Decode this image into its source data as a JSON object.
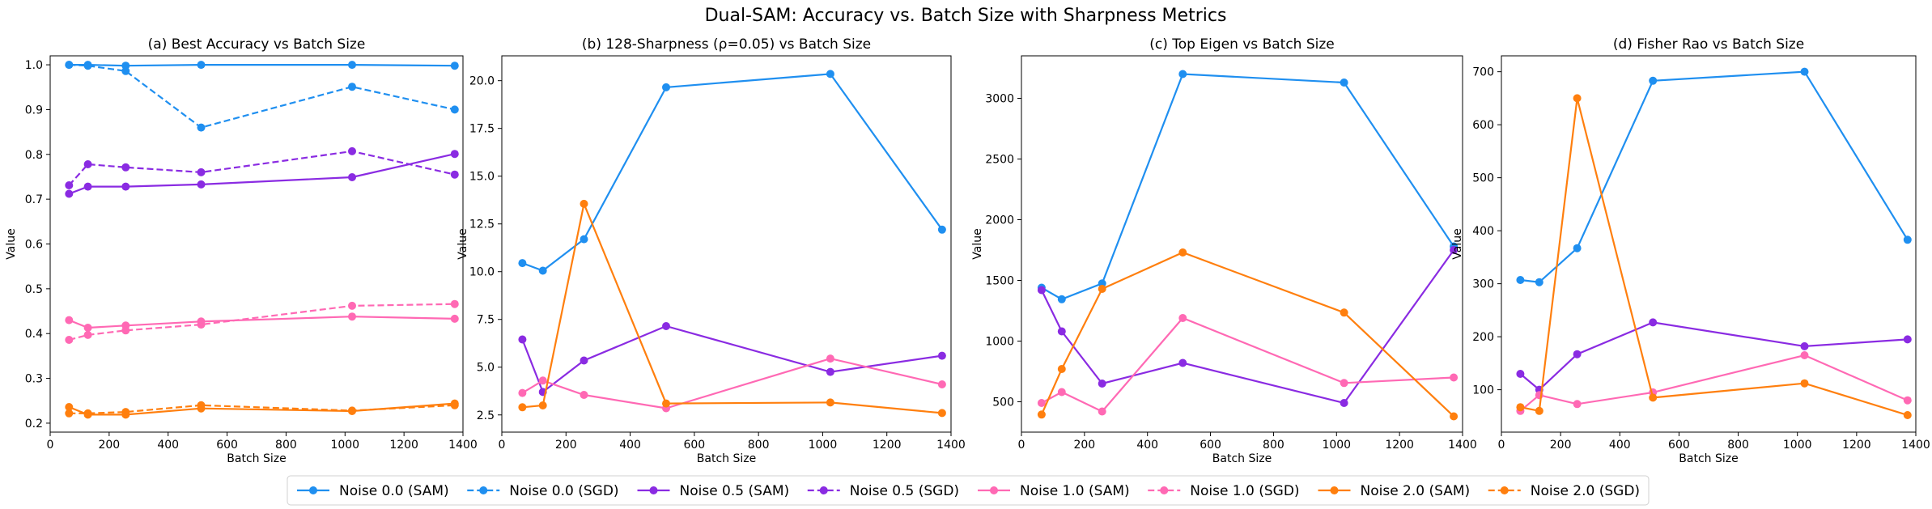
{
  "figure": {
    "suptitle": "Dual-SAM: Accuracy vs. Batch Size with Sharpness Metrics"
  },
  "legend": {
    "placement": "bottom-center",
    "entries": [
      {
        "label": "Noise 0.0 (SAM)",
        "color": "#1f8ff0",
        "dash": "solid"
      },
      {
        "label": "Noise 0.0 (SGD)",
        "color": "#1f8ff0",
        "dash": "dashed"
      },
      {
        "label": "Noise 0.5 (SAM)",
        "color": "#8a2be2",
        "dash": "solid"
      },
      {
        "label": "Noise 0.5 (SGD)",
        "color": "#8a2be2",
        "dash": "dashed"
      },
      {
        "label": "Noise 1.0 (SAM)",
        "color": "#ff69b4",
        "dash": "solid"
      },
      {
        "label": "Noise 1.0 (SGD)",
        "color": "#ff69b4",
        "dash": "dashed"
      },
      {
        "label": "Noise 2.0 (SAM)",
        "color": "#ff7f0e",
        "dash": "solid"
      },
      {
        "label": "Noise 2.0 (SGD)",
        "color": "#ff7f0e",
        "dash": "dashed"
      }
    ]
  },
  "chart_data": [
    {
      "type": "line",
      "title": "(a) Best Accuracy vs Batch Size",
      "xlabel": "Batch Size",
      "ylabel": "Value",
      "xlim": [
        0,
        1400
      ],
      "ylim": [
        0.18,
        1.02
      ],
      "xticks": [
        0,
        200,
        400,
        600,
        800,
        1000,
        1200,
        1400
      ],
      "yticks": [
        0.2,
        0.3,
        0.4,
        0.5,
        0.6,
        0.7,
        0.8,
        0.9,
        1.0
      ],
      "ytick_labels": [
        "0.2",
        "0.3",
        "0.4",
        "0.5",
        "0.6",
        "0.7",
        "0.8",
        "0.9",
        "1.0"
      ],
      "grid": false,
      "series": [
        {
          "name": "Noise 0.0 (SAM)",
          "color": "#1f8ff0",
          "dash": "solid",
          "x": [
            64,
            128,
            256,
            512,
            1024,
            1372
          ],
          "y": [
            1.0,
            1.0,
            0.998,
            1.0,
            1.0,
            0.998
          ]
        },
        {
          "name": "Noise 0.0 (SGD)",
          "color": "#1f8ff0",
          "dash": "dashed",
          "x": [
            64,
            128,
            256,
            512,
            1024,
            1372
          ],
          "y": [
            1.0,
            0.998,
            0.986,
            0.86,
            0.951,
            0.9
          ]
        },
        {
          "name": "Noise 0.5 (SAM)",
          "color": "#8a2be2",
          "dash": "solid",
          "x": [
            64,
            128,
            256,
            512,
            1024,
            1372
          ],
          "y": [
            0.712,
            0.728,
            0.728,
            0.733,
            0.749,
            0.801
          ]
        },
        {
          "name": "Noise 0.5 (SGD)",
          "color": "#8a2be2",
          "dash": "dashed",
          "x": [
            64,
            128,
            256,
            512,
            1024,
            1372
          ],
          "y": [
            0.731,
            0.778,
            0.771,
            0.76,
            0.807,
            0.755
          ]
        },
        {
          "name": "Noise 1.0 (SAM)",
          "color": "#ff69b4",
          "dash": "solid",
          "x": [
            64,
            128,
            256,
            512,
            1024,
            1372
          ],
          "y": [
            0.43,
            0.413,
            0.418,
            0.427,
            0.438,
            0.433
          ]
        },
        {
          "name": "Noise 1.0 (SGD)",
          "color": "#ff69b4",
          "dash": "dashed",
          "x": [
            64,
            128,
            256,
            512,
            1024,
            1372
          ],
          "y": [
            0.386,
            0.397,
            0.407,
            0.42,
            0.462,
            0.466
          ]
        },
        {
          "name": "Noise 2.0 (SAM)",
          "color": "#ff7f0e",
          "dash": "solid",
          "x": [
            64,
            128,
            256,
            512,
            1024,
            1372
          ],
          "y": [
            0.236,
            0.219,
            0.219,
            0.233,
            0.227,
            0.244
          ]
        },
        {
          "name": "Noise 2.0 (SGD)",
          "color": "#ff7f0e",
          "dash": "dashed",
          "x": [
            64,
            128,
            256,
            512,
            1024,
            1372
          ],
          "y": [
            0.222,
            0.222,
            0.225,
            0.24,
            0.228,
            0.24
          ]
        }
      ]
    },
    {
      "type": "line",
      "title": "(b) 128-Sharpness (ρ=0.05) vs Batch Size",
      "xlabel": "Batch Size",
      "ylabel": "Value",
      "xlim": [
        0,
        1400
      ],
      "ylim": [
        1.6,
        21.3
      ],
      "xticks": [
        0,
        200,
        400,
        600,
        800,
        1000,
        1200,
        1400
      ],
      "yticks": [
        2.5,
        5.0,
        7.5,
        10.0,
        12.5,
        15.0,
        17.5,
        20.0
      ],
      "ytick_labels": [
        "2.5",
        "5.0",
        "7.5",
        "10.0",
        "12.5",
        "15.0",
        "17.5",
        "20.0"
      ],
      "grid": false,
      "series": [
        {
          "name": "Noise 0.0 (SAM)",
          "color": "#1f8ff0",
          "dash": "solid",
          "x": [
            64,
            128,
            256,
            512,
            1024,
            1372
          ],
          "y": [
            10.45,
            10.05,
            11.7,
            19.65,
            20.35,
            12.2
          ]
        },
        {
          "name": "Noise 0.5 (SAM)",
          "color": "#8a2be2",
          "dash": "solid",
          "x": [
            64,
            128,
            256,
            512,
            1024,
            1372
          ],
          "y": [
            6.45,
            3.7,
            5.35,
            7.15,
            4.75,
            5.6
          ]
        },
        {
          "name": "Noise 1.0 (SAM)",
          "color": "#ff69b4",
          "dash": "solid",
          "x": [
            64,
            128,
            256,
            512,
            1024,
            1372
          ],
          "y": [
            3.65,
            4.3,
            3.55,
            2.85,
            5.45,
            4.1
          ]
        },
        {
          "name": "Noise 2.0 (SAM)",
          "color": "#ff7f0e",
          "dash": "solid",
          "x": [
            64,
            128,
            256,
            512,
            1024,
            1372
          ],
          "y": [
            2.9,
            3.0,
            13.55,
            3.1,
            3.15,
            2.6
          ]
        }
      ]
    },
    {
      "type": "line",
      "title": "(c) Top Eigen vs Batch Size",
      "xlabel": "Batch Size",
      "ylabel": "Value",
      "xlim": [
        0,
        1400
      ],
      "ylim": [
        250,
        3350
      ],
      "xticks": [
        0,
        200,
        400,
        600,
        800,
        1000,
        1200,
        1400
      ],
      "yticks": [
        500,
        1000,
        1500,
        2000,
        2500,
        3000
      ],
      "ytick_labels": [
        "500",
        "1000",
        "1500",
        "2000",
        "2500",
        "3000"
      ],
      "grid": false,
      "series": [
        {
          "name": "Noise 0.0 (SAM)",
          "color": "#1f8ff0",
          "dash": "solid",
          "x": [
            64,
            128,
            256,
            512,
            1024,
            1372
          ],
          "y": [
            1440,
            1345,
            1475,
            3200,
            3130,
            1780
          ]
        },
        {
          "name": "Noise 0.5 (SAM)",
          "color": "#8a2be2",
          "dash": "solid",
          "x": [
            64,
            128,
            256,
            512,
            1024,
            1372
          ],
          "y": [
            1420,
            1080,
            650,
            820,
            490,
            1750
          ]
        },
        {
          "name": "Noise 1.0 (SAM)",
          "color": "#ff69b4",
          "dash": "solid",
          "x": [
            64,
            128,
            256,
            512,
            1024,
            1372
          ],
          "y": [
            490,
            580,
            420,
            1190,
            655,
            700
          ]
        },
        {
          "name": "Noise 2.0 (SAM)",
          "color": "#ff7f0e",
          "dash": "solid",
          "x": [
            64,
            128,
            256,
            512,
            1024,
            1372
          ],
          "y": [
            395,
            770,
            1430,
            1730,
            1235,
            380
          ]
        }
      ]
    },
    {
      "type": "line",
      "title": "(d) Fisher Rao vs Batch Size",
      "xlabel": "Batch Size",
      "ylabel": "Value",
      "xlim": [
        0,
        1400
      ],
      "ylim": [
        20,
        730
      ],
      "xticks": [
        0,
        200,
        400,
        600,
        800,
        1000,
        1200,
        1400
      ],
      "yticks": [
        100,
        200,
        300,
        400,
        500,
        600,
        700
      ],
      "ytick_labels": [
        "100",
        "200",
        "300",
        "400",
        "500",
        "600",
        "700"
      ],
      "grid": false,
      "series": [
        {
          "name": "Noise 0.0 (SAM)",
          "color": "#1f8ff0",
          "dash": "solid",
          "x": [
            64,
            128,
            256,
            512,
            1024,
            1372
          ],
          "y": [
            307,
            303,
            367,
            683,
            700,
            383
          ]
        },
        {
          "name": "Noise 0.5 (SAM)",
          "color": "#8a2be2",
          "dash": "solid",
          "x": [
            64,
            128,
            256,
            512,
            1024,
            1372
          ],
          "y": [
            130,
            100,
            167,
            227,
            182,
            195
          ]
        },
        {
          "name": "Noise 1.0 (SAM)",
          "color": "#ff69b4",
          "dash": "solid",
          "x": [
            64,
            128,
            256,
            512,
            1024,
            1372
          ],
          "y": [
            60,
            90,
            73,
            95,
            165,
            80
          ]
        },
        {
          "name": "Noise 2.0 (SAM)",
          "color": "#ff7f0e",
          "dash": "solid",
          "x": [
            64,
            128,
            256,
            512,
            1024,
            1372
          ],
          "y": [
            67,
            60,
            650,
            85,
            112,
            52
          ]
        }
      ]
    }
  ]
}
